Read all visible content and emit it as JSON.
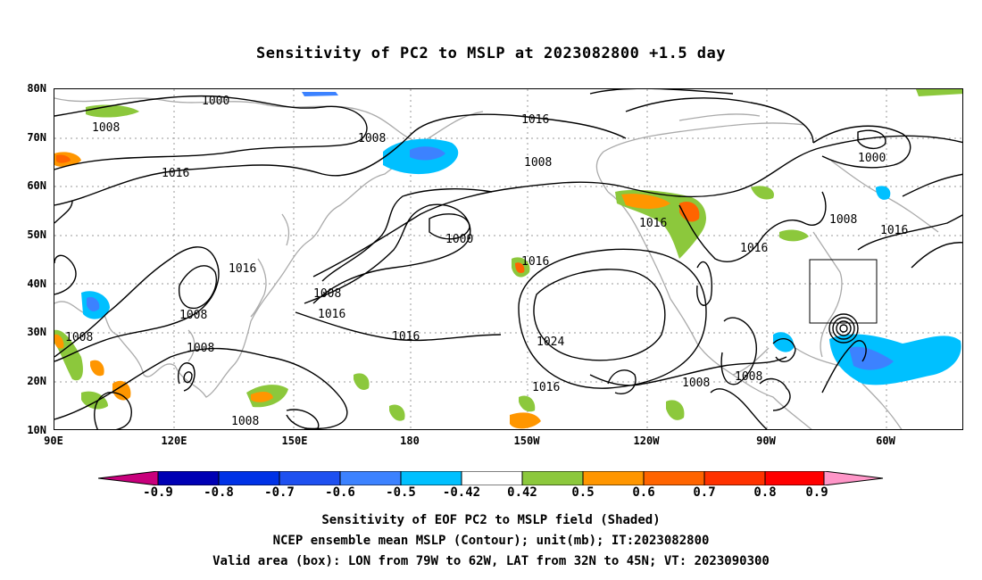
{
  "title": "Sensitivity of PC2 to MSLP at 2023082800 +1.5 day",
  "axes": {
    "lat_labels": [
      "80N",
      "70N",
      "60N",
      "50N",
      "40N",
      "30N",
      "20N",
      "10N"
    ],
    "lon_labels": [
      "90E",
      "120E",
      "150E",
      "180",
      "150W",
      "120W",
      "90W",
      "60W"
    ]
  },
  "contour_labels": {
    "c1": "1000",
    "c2": "1008",
    "c3": "1016",
    "c4": "1008",
    "c5": "1016",
    "c6": "1008",
    "c7": "1000",
    "c8": "1016",
    "c9": "1008",
    "c10": "1016",
    "c11": "1016",
    "c12": "1000",
    "c13": "1008",
    "c14": "1016",
    "c15": "1016",
    "c16": "1008",
    "c17": "1008",
    "c18": "1008",
    "c19": "1016",
    "c20": "1024",
    "c21": "1016",
    "c22": "1008",
    "c23": "1008",
    "c24": "1008"
  },
  "colorbar": {
    "labels": [
      "-0.9",
      "-0.8",
      "-0.7",
      "-0.6",
      "-0.5",
      "-0.42",
      "0.42",
      "0.5",
      "0.6",
      "0.7",
      "0.8",
      "0.9"
    ],
    "colors": [
      "#c8007c",
      "#0000b4",
      "#0032e6",
      "#1e50f0",
      "#3c82ff",
      "#00c0ff",
      "#ffffff",
      "#8cc83c",
      "#ff9600",
      "#ff6400",
      "#ff3200",
      "#ff0000",
      "#ff96c8"
    ]
  },
  "captions": {
    "line1": "Sensitivity of EOF PC2 to MSLP field (Shaded)",
    "line2": "NCEP ensemble mean MSLP (Contour); unit(mb); IT:2023082800",
    "line3": "Valid area (box): LON from 79W to 62W, LAT from 32N to 45N; VT: 2023090300"
  }
}
